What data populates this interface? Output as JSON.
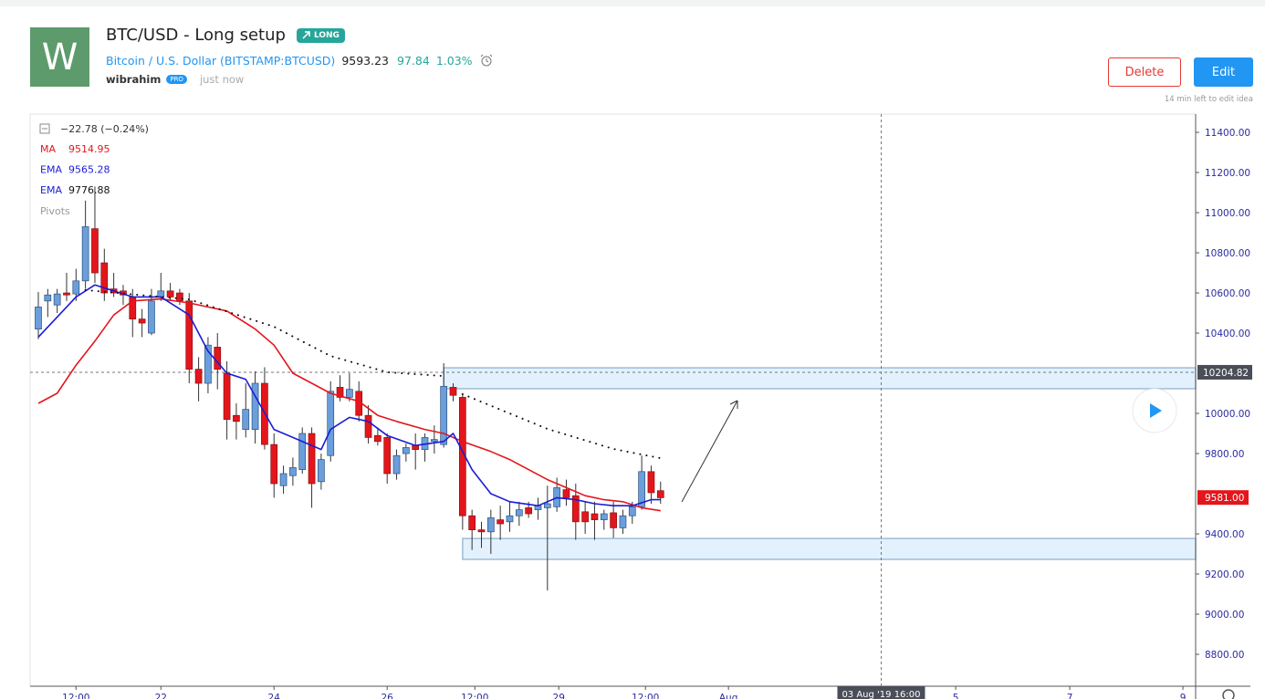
{
  "header": {
    "logo": "W",
    "title": "BTC/USD - Long setup",
    "badge": "LONG",
    "symbol_name": "Bitcoin / U.S. Dollar",
    "symbol_code": "(BITSTAMP:BTCUSD)",
    "price": "9593.23",
    "change": "97.84",
    "change_pct": "1.03%",
    "author": "wibrahim",
    "author_badge": "PRO",
    "time": "just now",
    "delete_button": "Delete",
    "edit_button": "Edit",
    "edit_note": "14 min left to edit idea"
  },
  "chart_data": {
    "type": "candlestick",
    "change_label": "−22.78 (−0.24%)",
    "pivots_label": "Pivots",
    "up_color": "#6a9fdc",
    "down_color": "#e3161c",
    "xlim": [
      -0.87,
      122.75
    ],
    "xticks": [
      {
        "value": 4,
        "label": "12:00"
      },
      {
        "value": 13,
        "label": "22"
      },
      {
        "value": 25,
        "label": "24"
      },
      {
        "value": 37,
        "label": "26"
      },
      {
        "value": 46.3,
        "label": "12:00"
      },
      {
        "value": 55.2,
        "label": "29"
      },
      {
        "value": 64.4,
        "label": "12:00"
      },
      {
        "value": 73.2,
        "label": "Aug"
      },
      {
        "value": 97.3,
        "label": "5"
      },
      {
        "value": 109.4,
        "label": "7"
      },
      {
        "value": 121.4,
        "label": "9"
      }
    ],
    "ylim": [
      8641,
      11491
    ],
    "yticks": [
      {
        "value": 11400,
        "label": "11400.00"
      },
      {
        "value": 11200,
        "label": "11200.00"
      },
      {
        "value": 11000,
        "label": "11000.00"
      },
      {
        "value": 10800,
        "label": "10800.00"
      },
      {
        "value": 10600,
        "label": "10600.00"
      },
      {
        "value": 10400,
        "label": "10400.00"
      },
      {
        "value": 10000,
        "label": "10000.00"
      },
      {
        "value": 9800,
        "label": "9800.00"
      },
      {
        "value": 9400,
        "label": "9400.00"
      },
      {
        "value": 9200,
        "label": "9200.00"
      },
      {
        "value": 9000,
        "label": "9000.00"
      },
      {
        "value": 8800,
        "label": "8800.00"
      }
    ],
    "open": [
      10420,
      10560,
      10540,
      10600,
      10595,
      10660,
      10920,
      10750,
      10620,
      10610,
      10580,
      10470,
      10400,
      10580,
      10610,
      10600,
      10560,
      10220,
      10150,
      10330,
      10200,
      9990,
      9920,
      9920,
      10150,
      9845,
      9640,
      9690,
      9720,
      9900,
      9660,
      9790,
      10130,
      10080,
      10110,
      9990,
      9890,
      9880,
      9700,
      9800,
      9840,
      9820,
      9860,
      9845,
      10130,
      10080,
      9490,
      9420,
      9410,
      9470,
      9460,
      9490,
      9530,
      9520,
      9530,
      9535,
      9620,
      9590,
      9510,
      9500,
      9470,
      9505,
      9430,
      9490,
      9535,
      9710,
      9615
    ],
    "high": [
      10605,
      10620,
      10620,
      10700,
      10720,
      11060,
      11130,
      10820,
      10700,
      10640,
      10620,
      10520,
      10620,
      10700,
      10650,
      10620,
      10600,
      10280,
      10380,
      10400,
      10260,
      10050,
      10150,
      10210,
      10230,
      9900,
      9740,
      9780,
      9930,
      9930,
      9800,
      10160,
      10190,
      10200,
      10160,
      10040,
      9930,
      9900,
      9820,
      9850,
      9900,
      9900,
      9940,
      10250,
      10150,
      10100,
      9520,
      9460,
      9520,
      9540,
      9560,
      9560,
      9560,
      9580,
      9640,
      9680,
      9670,
      9650,
      9560,
      9560,
      9520,
      9560,
      9520,
      9560,
      9790,
      9740,
      9660
    ],
    "low": [
      10370,
      10480,
      10500,
      10560,
      10560,
      10620,
      10650,
      10560,
      10580,
      10540,
      10380,
      10380,
      10390,
      10560,
      10560,
      10540,
      10150,
      10060,
      10100,
      10120,
      9870,
      9870,
      9880,
      9850,
      9820,
      9580,
      9600,
      9640,
      9700,
      9530,
      9620,
      9760,
      10060,
      10060,
      9960,
      9850,
      9840,
      9650,
      9670,
      9760,
      9720,
      9760,
      9800,
      9830,
      10060,
      9420,
      9320,
      9330,
      9300,
      9370,
      9410,
      9440,
      9480,
      9470,
      9118,
      9510,
      9540,
      9370,
      9400,
      9370,
      9420,
      9380,
      9400,
      9450,
      9520,
      9550,
      9550
    ],
    "close": [
      10530,
      10590,
      10595,
      10590,
      10660,
      10930,
      10700,
      10600,
      10600,
      10590,
      10470,
      10450,
      10560,
      10610,
      10580,
      10560,
      10220,
      10150,
      10340,
      10220,
      9970,
      9960,
      10020,
      10150,
      9845,
      9650,
      9700,
      9730,
      9900,
      9650,
      9770,
      10110,
      10080,
      10120,
      9990,
      9880,
      9860,
      9700,
      9790,
      9830,
      9820,
      9880,
      9870,
      10135,
      10090,
      9490,
      9420,
      9410,
      9480,
      9450,
      9490,
      9520,
      9500,
      9540,
      9550,
      9630,
      9580,
      9460,
      9460,
      9470,
      9500,
      9430,
      9490,
      9535,
      9710,
      9605,
      9580
    ],
    "indicators": [
      {
        "name": "MA",
        "value": 9514.95,
        "color": "#e3161c",
        "style": "line",
        "x": [
          0,
          2,
          4,
          6,
          8,
          10,
          13,
          16,
          18,
          20,
          23,
          25,
          27,
          29,
          31,
          34,
          36,
          38,
          41,
          43,
          45,
          48,
          50,
          52,
          54,
          56,
          58,
          60,
          62,
          64,
          66
        ],
        "values": [
          10050,
          10100,
          10240,
          10360,
          10490,
          10560,
          10570,
          10550,
          10530,
          10510,
          10420,
          10340,
          10200,
          10150,
          10100,
          10060,
          9990,
          9960,
          9920,
          9900,
          9860,
          9810,
          9770,
          9720,
          9670,
          9630,
          9590,
          9570,
          9560,
          9530,
          9515
        ]
      },
      {
        "name": "EMA",
        "value": 9565.28,
        "color": "#1b1bd8",
        "style": "line",
        "x": [
          0,
          4,
          6,
          10,
          13,
          16,
          18,
          20,
          22,
          25,
          27,
          30,
          31,
          33,
          35,
          37,
          40,
          43,
          44,
          46,
          48,
          50,
          53,
          55,
          57,
          59,
          61,
          63,
          65,
          66
        ],
        "values": [
          10380,
          10580,
          10640,
          10580,
          10580,
          10490,
          10310,
          10200,
          10170,
          9920,
          9880,
          9820,
          9920,
          9980,
          9960,
          9890,
          9840,
          9860,
          9900,
          9720,
          9600,
          9560,
          9540,
          9580,
          9570,
          9550,
          9540,
          9540,
          9570,
          9570
        ]
      },
      {
        "name": "EMA",
        "value": 9776.88,
        "color": "#111111",
        "style": "dots",
        "x": [
          5,
          16,
          25,
          31,
          37,
          43,
          44,
          45,
          54,
          61,
          66
        ],
        "values": [
          10614,
          10568,
          10432,
          10286,
          10205,
          10186,
          null,
          10096,
          9923,
          9823,
          9777
        ]
      }
    ],
    "zones": [
      {
        "x_start": 43,
        "top": 10227,
        "bottom": 10123
      },
      {
        "x_start": 45,
        "top": 9377,
        "bottom": 9273
      }
    ],
    "last_price": {
      "value": 9581,
      "label": "9581.00"
    },
    "crosshair_price": {
      "value": 10204.82,
      "label": "10204.82"
    },
    "crosshair_time": {
      "value": 89.4,
      "label": "03 Aug '19  16:00"
    }
  }
}
